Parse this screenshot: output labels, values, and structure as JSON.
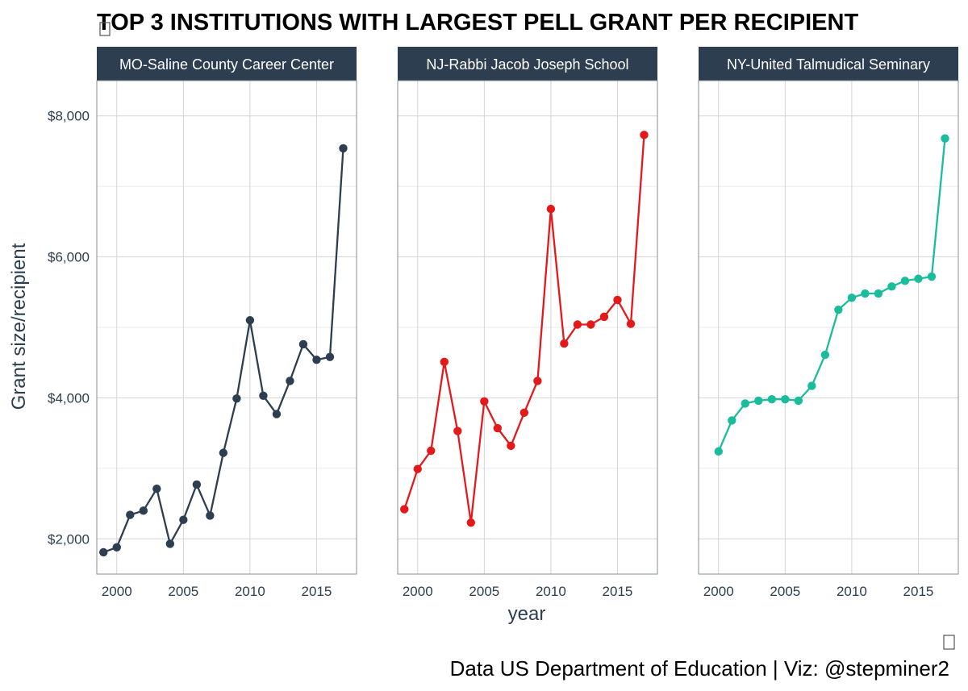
{
  "title": "TOP 3 INSTITUTIONS WITH LARGEST PELL GRANT PER RECIPIENT",
  "caption": "Data US Department of Education | Viz: @stepminer2",
  "chart_data": {
    "type": "line",
    "facet_layout": "1 row x 3 columns",
    "xlabel": "year",
    "ylabel": "Grant size/recipient",
    "xlim": [
      1998.5,
      2018.0
    ],
    "ylim": [
      1500,
      8500
    ],
    "x_ticks": [
      2000,
      2005,
      2010,
      2015
    ],
    "y_ticks": [
      2000,
      4000,
      6000,
      8000
    ],
    "y_tick_labels": [
      "$2,000",
      "$4,000",
      "$6,000",
      "$8,000"
    ],
    "y_minor_gridlines": [
      3000,
      5000,
      7000
    ],
    "grid": true,
    "legend": "none",
    "strip_color": "#2c3e50",
    "panels": [
      {
        "name": "MO-Saline County Career Center",
        "color": "#2c3e50",
        "x": [
          1999,
          2000,
          2001,
          2002,
          2003,
          2004,
          2005,
          2006,
          2007,
          2008,
          2009,
          2010,
          2011,
          2012,
          2013,
          2014,
          2015,
          2016,
          2017
        ],
        "values": [
          1810,
          1880,
          2340,
          2400,
          2710,
          1930,
          2270,
          2770,
          2330,
          3220,
          3990,
          5100,
          4030,
          3770,
          4240,
          4760,
          4540,
          4580,
          7540
        ]
      },
      {
        "name": "NJ-Rabbi Jacob Joseph School",
        "color": "#e31a1c",
        "x": [
          1999,
          2000,
          2001,
          2002,
          2003,
          2004,
          2005,
          2006,
          2007,
          2008,
          2009,
          2010,
          2011,
          2012,
          2013,
          2014,
          2015,
          2016,
          2017
        ],
        "values": [
          2420,
          2990,
          3250,
          4510,
          3530,
          2230,
          3950,
          3570,
          3320,
          3790,
          4240,
          6680,
          4770,
          5040,
          5040,
          5150,
          5390,
          5050,
          7730
        ]
      },
      {
        "name": "NY-United Talmudical Seminary",
        "color": "#1abc9c",
        "x": [
          2000,
          2001,
          2002,
          2003,
          2004,
          2005,
          2006,
          2007,
          2008,
          2009,
          2010,
          2011,
          2012,
          2013,
          2014,
          2015,
          2016,
          2017
        ],
        "values": [
          3240,
          3680,
          3920,
          3960,
          3980,
          3980,
          3960,
          4170,
          4610,
          5250,
          5420,
          5480,
          5480,
          5580,
          5660,
          5690,
          5720,
          7680
        ]
      }
    ]
  }
}
